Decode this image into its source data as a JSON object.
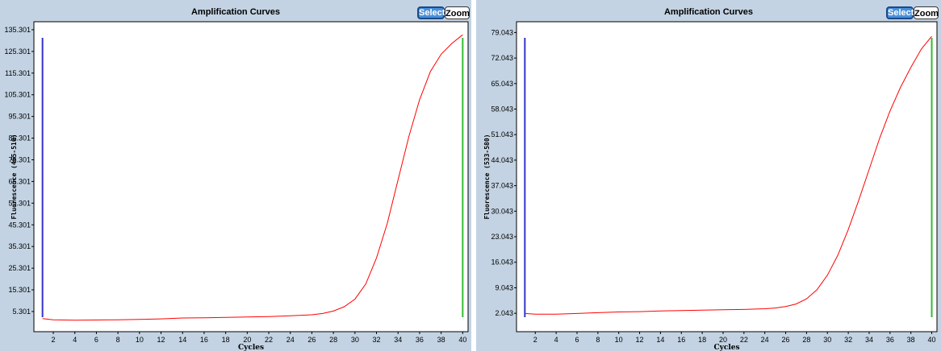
{
  "charts": [
    {
      "title": "Amplification Curves",
      "select_label": "Select",
      "zoom_label": "Zoom",
      "ylabel": "Fluorescence (465-510)",
      "xlabel": "Cycles",
      "yticks": [
        "5.301",
        "15.301",
        "25.301",
        "35.301",
        "45.301",
        "55.301",
        "65.301",
        "75.301",
        "85.301",
        "95.301",
        "105.301",
        "115.301",
        "125.301",
        "135.301"
      ]
    },
    {
      "title": "Amplification Curves",
      "select_label": "Select",
      "zoom_label": "Zoom",
      "ylabel": "Fluorescence (533-580)",
      "xlabel": "Cycles",
      "yticks": [
        "2.043",
        "9.043",
        "16.043",
        "23.043",
        "30.043",
        "37.043",
        "44.043",
        "51.043",
        "58.043",
        "65.043",
        "72.043",
        "79.043"
      ]
    }
  ],
  "chart_data": [
    {
      "type": "line",
      "title": "Amplification Curves",
      "xlabel": "Cycles",
      "ylabel": "Fluorescence (465-510)",
      "xlim": [
        0.2,
        40.5
      ],
      "ylim": [
        -4,
        139
      ],
      "xticks": [
        2,
        4,
        6,
        8,
        10,
        12,
        14,
        16,
        18,
        20,
        22,
        24,
        26,
        28,
        30,
        32,
        34,
        36,
        38,
        40
      ],
      "yticks": [
        5.301,
        15.301,
        25.301,
        35.301,
        45.301,
        55.301,
        65.301,
        75.301,
        85.301,
        95.301,
        105.301,
        115.301,
        125.301,
        135.301
      ],
      "colors": {
        "curve": "#ff0000",
        "start_marker": "#3333cc",
        "end_marker": "#33bb33"
      },
      "markers": {
        "start_cycle": 1,
        "end_cycle": 40
      },
      "series": [
        {
          "x": [
            1,
            2,
            4,
            6,
            8,
            10,
            12,
            14,
            16,
            18,
            20,
            22,
            24,
            26,
            27,
            28,
            29,
            30,
            31,
            32,
            33,
            34,
            35,
            36,
            37,
            38,
            39,
            40
          ],
          "y": [
            2.0,
            1.5,
            1.3,
            1.4,
            1.5,
            1.7,
            1.9,
            2.3,
            2.4,
            2.6,
            2.8,
            3.0,
            3.3,
            3.8,
            4.4,
            5.5,
            7.5,
            11.0,
            18.0,
            30.0,
            46.0,
            66.0,
            86.0,
            103.0,
            116.0,
            124.0,
            129.0,
            133.0
          ]
        }
      ]
    },
    {
      "type": "line",
      "title": "Amplification Curves",
      "xlabel": "Cycles",
      "ylabel": "Fluorescence (533-580)",
      "xlim": [
        0.2,
        40.5
      ],
      "ylim": [
        -3,
        82
      ],
      "xticks": [
        2,
        4,
        6,
        8,
        10,
        12,
        14,
        16,
        18,
        20,
        22,
        24,
        26,
        28,
        30,
        32,
        34,
        36,
        38,
        40
      ],
      "yticks": [
        2.043,
        9.043,
        16.043,
        23.043,
        30.043,
        37.043,
        44.043,
        51.043,
        58.043,
        65.043,
        72.043,
        79.043
      ],
      "colors": {
        "curve": "#ff0000",
        "start_marker": "#3333cc",
        "end_marker": "#33bb33"
      },
      "markers": {
        "start_cycle": 1,
        "end_cycle": 40
      },
      "series": [
        {
          "x": [
            1,
            2,
            4,
            6,
            8,
            10,
            12,
            14,
            16,
            18,
            20,
            22,
            24,
            25,
            26,
            27,
            28,
            29,
            30,
            31,
            32,
            33,
            34,
            35,
            36,
            37,
            38,
            39,
            40
          ],
          "y": [
            2.0,
            1.8,
            1.8,
            2.0,
            2.2,
            2.4,
            2.5,
            2.7,
            2.8,
            2.9,
            3.0,
            3.1,
            3.3,
            3.5,
            3.9,
            4.6,
            6.0,
            8.5,
            12.5,
            18.0,
            25.0,
            33.0,
            41.5,
            50.0,
            57.5,
            64.0,
            69.5,
            74.5,
            78.0
          ]
        }
      ]
    }
  ]
}
